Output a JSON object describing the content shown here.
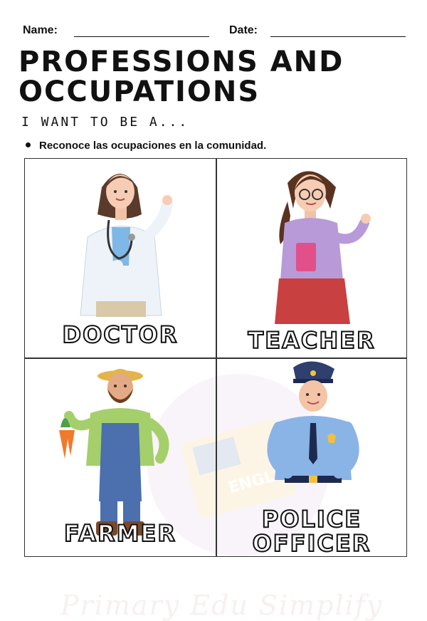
{
  "header": {
    "name_label": "Name:",
    "date_label": "Date:"
  },
  "title_line1": "PROFESSIONS AND",
  "title_line2": "OCCUPATIONS",
  "subtitle": "I WANT TO BE A...",
  "objective": "Reconoce las ocupaciones en la comunidad.",
  "watermark_text": "Primary Edu Simplify",
  "watermark_book_text": "ENGLISH",
  "professions": [
    {
      "label": "DOCTOR",
      "icon": "doctor-illustration"
    },
    {
      "label": "TEACHER",
      "icon": "teacher-illustration"
    },
    {
      "label": "FARMER",
      "icon": "farmer-illustration"
    },
    {
      "label_line1": "POLICE",
      "label_line2": "OFFICER",
      "icon": "police-officer-illustration"
    }
  ]
}
